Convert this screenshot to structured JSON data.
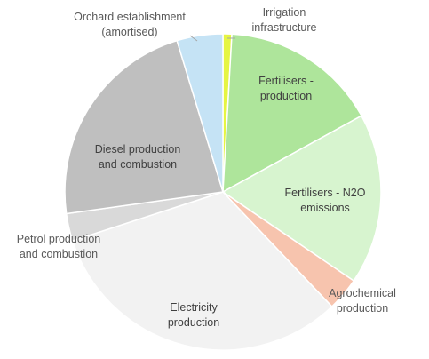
{
  "chart_data": {
    "type": "pie",
    "title": "",
    "legend": "none",
    "start_angle_deg": 0,
    "direction": "clockwise",
    "slices": [
      {
        "label": [
          "Irrigation",
          "infrastructure"
        ],
        "value": 0.9,
        "color": "#e6f542"
      },
      {
        "label": [
          "Fertilisers -",
          "production"
        ],
        "value": 16.1,
        "color": "#aee59b"
      },
      {
        "label": [
          "Fertilisers - N2O",
          "emissions"
        ],
        "value": 17.5,
        "color": "#d7f4cf"
      },
      {
        "label": [
          "Agrochemical",
          "production"
        ],
        "value": 3.4,
        "color": "#f7c4ae"
      },
      {
        "label": [
          "Electricity",
          "production"
        ],
        "value": 32.1,
        "color": "#f2f2f2"
      },
      {
        "label": [
          "Petrol production",
          "and combustion"
        ],
        "value": 2.8,
        "color": "#d9d9d9"
      },
      {
        "label": [
          "Diesel production",
          "and combustion"
        ],
        "value": 22.5,
        "color": "#bfbfbf"
      },
      {
        "label": [
          "Orchard establishment",
          "(amortised)"
        ],
        "value": 4.7,
        "color": "#c5e3f5"
      }
    ]
  }
}
